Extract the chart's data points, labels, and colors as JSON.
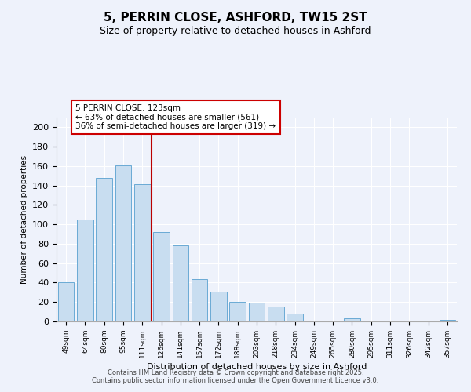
{
  "title": "5, PERRIN CLOSE, ASHFORD, TW15 2ST",
  "subtitle": "Size of property relative to detached houses in Ashford",
  "xlabel": "Distribution of detached houses by size in Ashford",
  "ylabel": "Number of detached properties",
  "bar_labels": [
    "49sqm",
    "64sqm",
    "80sqm",
    "95sqm",
    "111sqm",
    "126sqm",
    "141sqm",
    "157sqm",
    "172sqm",
    "188sqm",
    "203sqm",
    "218sqm",
    "234sqm",
    "249sqm",
    "265sqm",
    "280sqm",
    "295sqm",
    "311sqm",
    "326sqm",
    "342sqm",
    "357sqm"
  ],
  "bar_values": [
    40,
    105,
    148,
    161,
    141,
    92,
    78,
    44,
    31,
    20,
    19,
    15,
    8,
    0,
    0,
    3,
    0,
    0,
    0,
    0,
    2
  ],
  "bar_color": "#c8ddf0",
  "bar_edge_color": "#6aaad4",
  "vline_x_index": 4.5,
  "vline_color": "#bb0000",
  "annotation_line1": "5 PERRIN CLOSE: 123sqm",
  "annotation_line2": "← 63% of detached houses are smaller (561)",
  "annotation_line3": "36% of semi-detached houses are larger (319) →",
  "annotation_box_color": "#ffffff",
  "annotation_box_edge": "#cc0000",
  "ylim": [
    0,
    210
  ],
  "yticks": [
    0,
    20,
    40,
    60,
    80,
    100,
    120,
    140,
    160,
    180,
    200
  ],
  "background_color": "#eef2fb",
  "grid_color": "#ffffff",
  "footer_line1": "Contains HM Land Registry data © Crown copyright and database right 2025.",
  "footer_line2": "Contains public sector information licensed under the Open Government Licence v3.0."
}
